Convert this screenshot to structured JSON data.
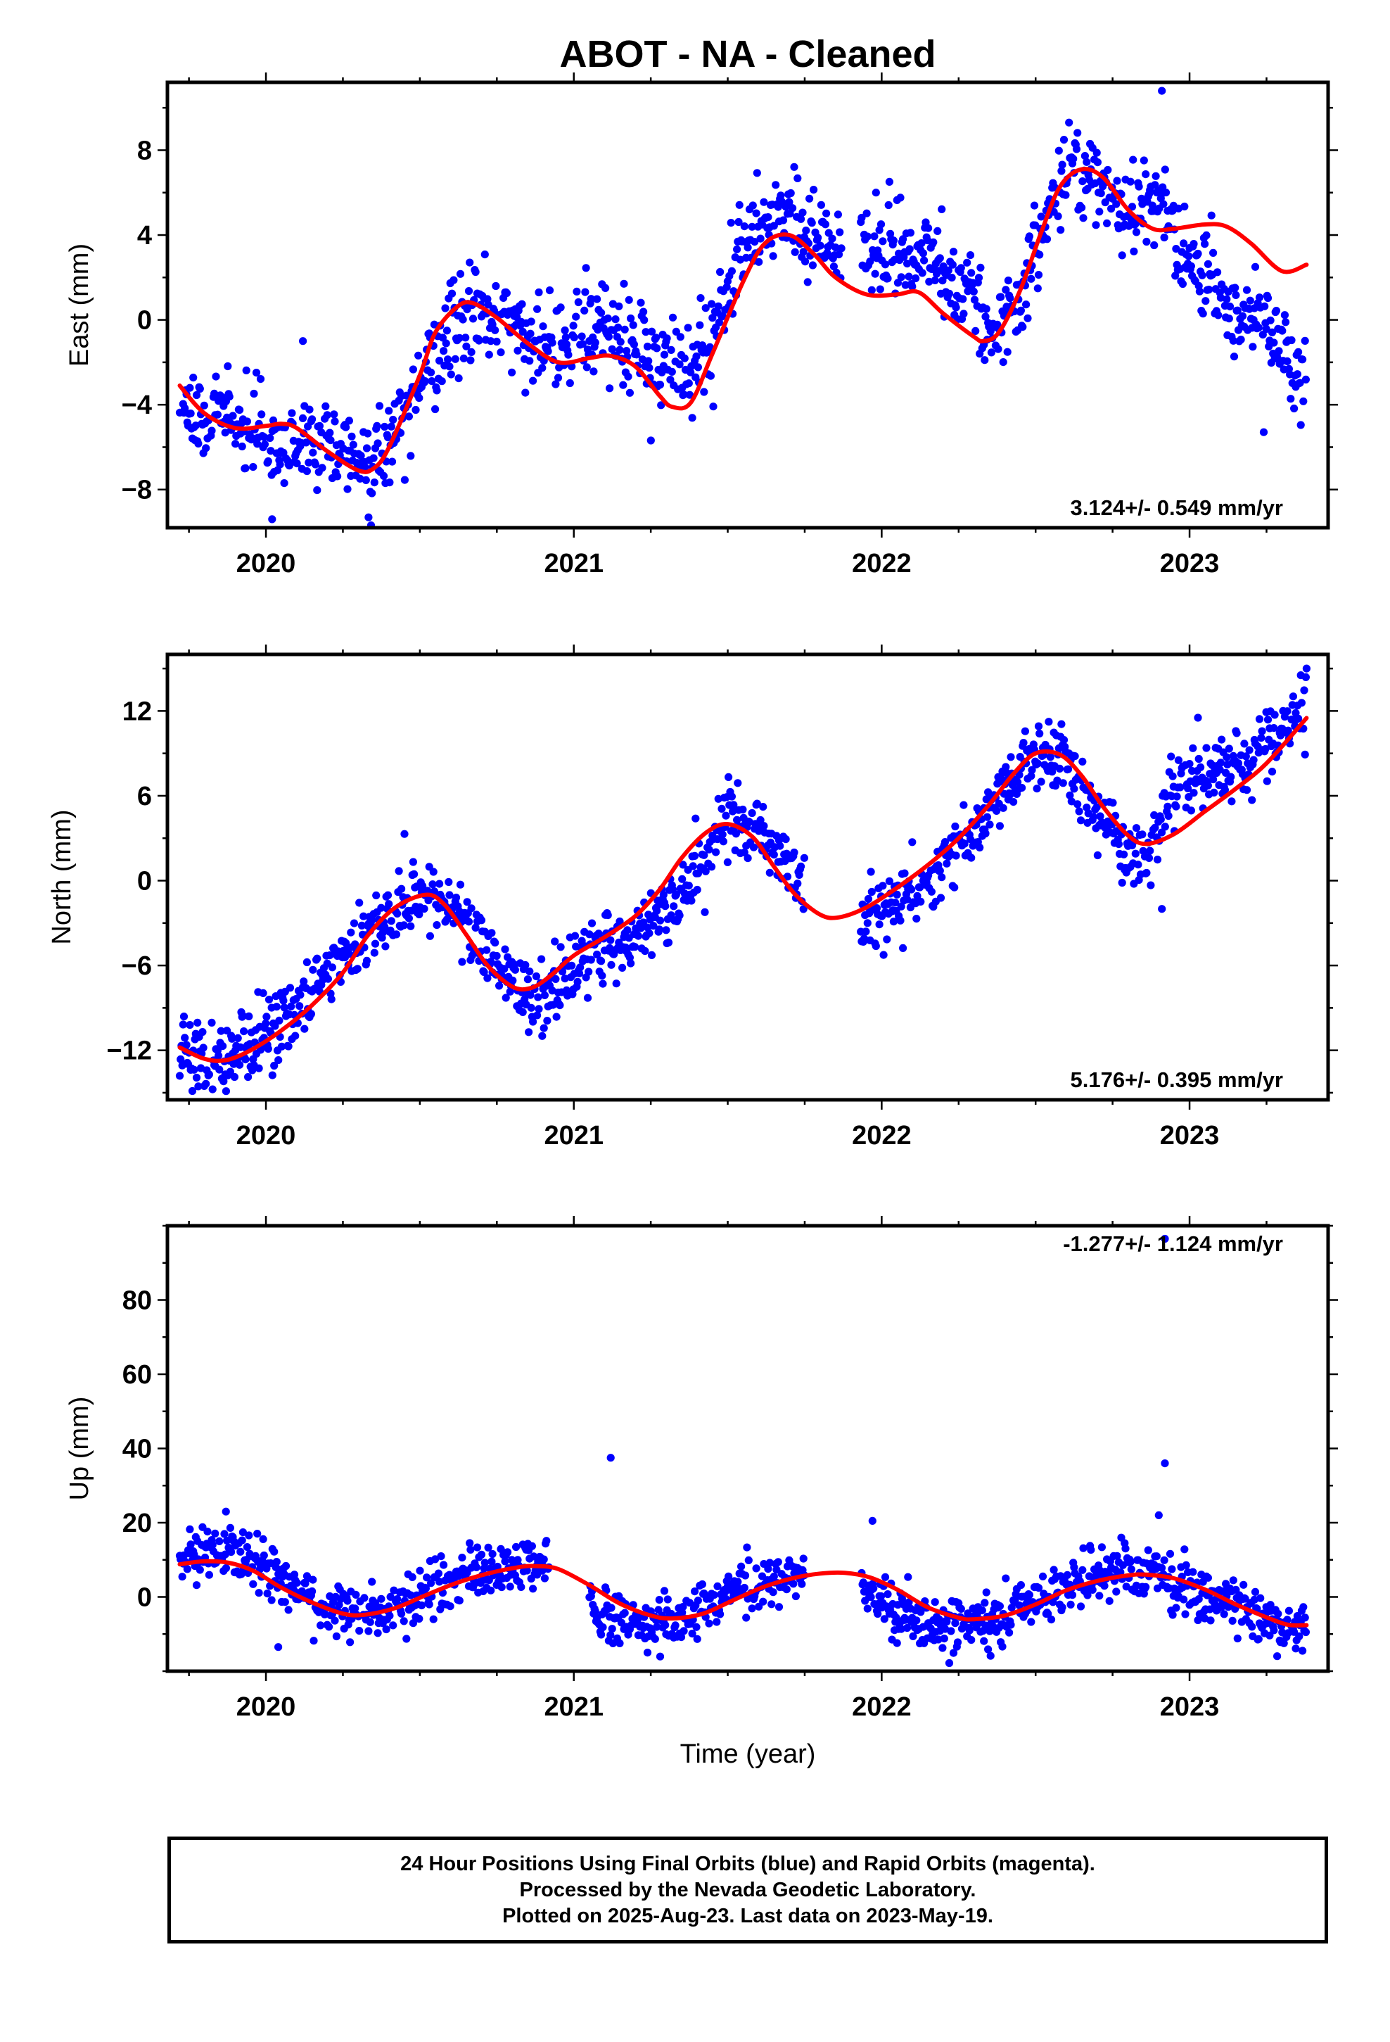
{
  "title": "ABOT  - NA - Cleaned",
  "footer": {
    "lines": [
      "24 Hour Positions Using Final Orbits (blue) and Rapid Orbits (magenta).",
      "Processed by the Nevada Geodetic Laboratory.",
      "Plotted on 2025-Aug-23. Last data on 2023-May-19."
    ]
  },
  "colors": {
    "points": "#0000ff",
    "fit": "#ff0000",
    "axis": "#000000"
  },
  "chart_data": [
    {
      "type": "scatter",
      "ylabel": "East (mm)",
      "xlabel": "",
      "rate_label": "3.124+/- 0.549 mm/yr",
      "xlim": [
        2019.68,
        2023.45
      ],
      "ylim": [
        -9.8,
        11.2
      ],
      "x_ticks": [
        2020,
        2021,
        2022,
        2023
      ],
      "y_ticks": [
        -8,
        -4,
        0,
        4,
        8
      ],
      "y_tick_labels": [
        "−8",
        "−4",
        "0",
        "4",
        "8"
      ],
      "series": [
        {
          "kind": "points",
          "gaps": [
            [
              2021.87,
              2021.93
            ]
          ],
          "outliers": [
            [
              2020.12,
              -1.0
            ],
            [
              2020.02,
              -9.4
            ],
            [
              2022.91,
              10.8
            ]
          ],
          "trend": [
            [
              2019.72,
              -5.0
            ],
            [
              2019.85,
              -4.3
            ],
            [
              2020.0,
              -5.5
            ],
            [
              2020.15,
              -5.8
            ],
            [
              2020.3,
              -6.8
            ],
            [
              2020.42,
              -5.3
            ],
            [
              2020.5,
              -3.0
            ],
            [
              2020.6,
              -0.3
            ],
            [
              2020.7,
              0.3
            ],
            [
              2020.8,
              -0.5
            ],
            [
              2020.9,
              -1.3
            ],
            [
              2021.0,
              -0.8
            ],
            [
              2021.1,
              -0.3
            ],
            [
              2021.2,
              -1.5
            ],
            [
              2021.3,
              -2.5
            ],
            [
              2021.42,
              -1.5
            ],
            [
              2021.5,
              1.5
            ],
            [
              2021.6,
              4.3
            ],
            [
              2021.7,
              5.0
            ],
            [
              2021.76,
              4.2
            ],
            [
              2021.95,
              3.0
            ],
            [
              2022.05,
              3.5
            ],
            [
              2022.15,
              3.3
            ],
            [
              2022.25,
              1.5
            ],
            [
              2022.35,
              -0.3
            ],
            [
              2022.45,
              0.2
            ],
            [
              2022.52,
              4.0
            ],
            [
              2022.6,
              7.3
            ],
            [
              2022.7,
              6.8
            ],
            [
              2022.82,
              5.0
            ],
            [
              2022.92,
              5.5
            ],
            [
              2023.0,
              2.5
            ],
            [
              2023.1,
              1.5
            ],
            [
              2023.2,
              0.0
            ],
            [
              2023.3,
              -1.0
            ],
            [
              2023.38,
              -2.8
            ]
          ],
          "spread": 1.1
        },
        {
          "kind": "fit",
          "x": [
            2019.72,
            2019.8,
            2019.9,
            2020.0,
            2020.05,
            2020.1,
            2020.2,
            2020.3,
            2020.35,
            2020.4,
            2020.5,
            2020.55,
            2020.62,
            2020.67,
            2020.75,
            2020.85,
            2020.95,
            2021.05,
            2021.12,
            2021.2,
            2021.28,
            2021.32,
            2021.38,
            2021.45,
            2021.55,
            2021.62,
            2021.7,
            2021.78,
            2021.85,
            2021.95,
            2022.05,
            2022.12,
            2022.2,
            2022.3,
            2022.33,
            2022.38,
            2022.45,
            2022.52,
            2022.58,
            2022.65,
            2022.72,
            2022.8,
            2022.88,
            2022.95,
            2023.05,
            2023.12,
            2023.2,
            2023.3,
            2023.38
          ],
          "y": [
            -3.1,
            -4.4,
            -5.1,
            -5.0,
            -4.9,
            -5.1,
            -6.2,
            -7.1,
            -7.0,
            -6.0,
            -2.6,
            -0.6,
            0.6,
            0.8,
            0.1,
            -1.1,
            -2.0,
            -1.8,
            -1.7,
            -2.2,
            -3.6,
            -4.1,
            -3.9,
            -1.6,
            1.8,
            3.6,
            4.0,
            3.1,
            2.0,
            1.2,
            1.2,
            1.3,
            0.3,
            -0.8,
            -1.0,
            -0.6,
            1.4,
            4.2,
            6.3,
            7.1,
            6.7,
            5.2,
            4.3,
            4.3,
            4.5,
            4.4,
            3.6,
            2.3,
            2.6
          ]
        }
      ]
    },
    {
      "type": "scatter",
      "ylabel": "North (mm)",
      "xlabel": "",
      "rate_label": "5.176+/- 0.395 mm/yr",
      "xlim": [
        2019.68,
        2023.45
      ],
      "ylim": [
        -15.5,
        16.0
      ],
      "x_ticks": [
        2020,
        2021,
        2022,
        2023
      ],
      "y_ticks": [
        -12,
        -6,
        0,
        6,
        12
      ],
      "y_tick_labels": [
        "−12",
        "−6",
        "0",
        "6",
        "12"
      ],
      "series": [
        {
          "kind": "points",
          "gaps": [
            [
              2021.75,
              2021.93
            ]
          ],
          "outliers": [
            [
              2020.45,
              3.3
            ],
            [
              2022.91,
              -2.0
            ],
            [
              2023.38,
              15.0
            ]
          ],
          "trend": [
            [
              2019.72,
              -12.0
            ],
            [
              2019.85,
              -13.0
            ],
            [
              2020.0,
              -11.0
            ],
            [
              2020.15,
              -8.0
            ],
            [
              2020.3,
              -4.5
            ],
            [
              2020.42,
              -2.0
            ],
            [
              2020.52,
              -0.5
            ],
            [
              2020.6,
              -1.8
            ],
            [
              2020.72,
              -5.0
            ],
            [
              2020.85,
              -8.5
            ],
            [
              2020.95,
              -7.5
            ],
            [
              2021.05,
              -5.0
            ],
            [
              2021.15,
              -4.5
            ],
            [
              2021.3,
              -2.0
            ],
            [
              2021.42,
              1.0
            ],
            [
              2021.5,
              4.5
            ],
            [
              2021.6,
              3.5
            ],
            [
              2021.72,
              0.0
            ],
            [
              2021.93,
              -3.0
            ],
            [
              2022.05,
              -1.5
            ],
            [
              2022.15,
              0.0
            ],
            [
              2022.25,
              2.0
            ],
            [
              2022.35,
              5.0
            ],
            [
              2022.48,
              8.5
            ],
            [
              2022.6,
              8.5
            ],
            [
              2022.72,
              4.0
            ],
            [
              2022.85,
              1.0
            ],
            [
              2022.92,
              5.0
            ],
            [
              2023.0,
              7.0
            ],
            [
              2023.1,
              8.0
            ],
            [
              2023.2,
              8.5
            ],
            [
              2023.3,
              10.5
            ],
            [
              2023.38,
              12.5
            ]
          ],
          "spread": 1.2
        },
        {
          "kind": "fit",
          "x": [
            2019.72,
            2019.8,
            2019.87,
            2019.95,
            2020.05,
            2020.15,
            2020.25,
            2020.33,
            2020.42,
            2020.52,
            2020.58,
            2020.65,
            2020.72,
            2020.8,
            2020.86,
            2020.92,
            2021.0,
            2021.1,
            2021.2,
            2021.28,
            2021.35,
            2021.43,
            2021.5,
            2021.58,
            2021.65,
            2021.72,
            2021.8,
            2021.86,
            2021.95,
            2022.05,
            2022.15,
            2022.25,
            2022.35,
            2022.43,
            2022.5,
            2022.58,
            2022.65,
            2022.72,
            2022.8,
            2022.86,
            2022.95,
            2023.05,
            2023.15,
            2023.25,
            2023.38
          ],
          "y": [
            -11.8,
            -12.6,
            -12.7,
            -12.0,
            -10.6,
            -8.8,
            -6.5,
            -3.9,
            -1.9,
            -1.0,
            -1.7,
            -3.8,
            -6.0,
            -7.5,
            -7.6,
            -6.8,
            -5.3,
            -4.0,
            -2.5,
            -0.6,
            1.6,
            3.4,
            4.0,
            3.1,
            1.0,
            -1.0,
            -2.4,
            -2.6,
            -1.9,
            -0.5,
            1.1,
            3.0,
            5.4,
            7.6,
            9.0,
            8.9,
            7.4,
            5.2,
            3.2,
            2.6,
            3.3,
            4.9,
            6.5,
            8.3,
            11.5
          ]
        }
      ]
    },
    {
      "type": "scatter",
      "ylabel": "Up (mm)",
      "xlabel": "Time (year)",
      "rate_label": "-1.277+/- 1.124 mm/yr",
      "xlim": [
        2019.68,
        2023.45
      ],
      "ylim": [
        -20,
        100
      ],
      "x_ticks": [
        2020,
        2021,
        2022,
        2023
      ],
      "y_ticks": [
        0,
        20,
        40,
        60,
        80
      ],
      "y_tick_labels": [
        "0",
        "20",
        "40",
        "60",
        "80"
      ],
      "series": [
        {
          "kind": "points",
          "gaps": [
            [
              2020.92,
              2021.05
            ],
            [
              2021.75,
              2021.93
            ]
          ],
          "outliers": [
            [
              2021.12,
              37.5
            ],
            [
              2022.92,
              36.0
            ],
            [
              2022.92,
              96.5
            ],
            [
              2020.04,
              -13.5
            ],
            [
              2021.97,
              20.5
            ],
            [
              2022.9,
              22.0
            ],
            [
              2019.87,
              23.0
            ]
          ],
          "trend": [
            [
              2019.72,
              10.0
            ],
            [
              2019.85,
              12.0
            ],
            [
              2020.0,
              8.0
            ],
            [
              2020.12,
              0.0
            ],
            [
              2020.25,
              -5.0
            ],
            [
              2020.4,
              -3.0
            ],
            [
              2020.55,
              3.0
            ],
            [
              2020.7,
              6.0
            ],
            [
              2020.85,
              8.0
            ],
            [
              2020.92,
              7.0
            ],
            [
              2021.05,
              -2.0
            ],
            [
              2021.2,
              -8.0
            ],
            [
              2021.35,
              -7.0
            ],
            [
              2021.5,
              2.0
            ],
            [
              2021.65,
              5.0
            ],
            [
              2021.75,
              5.5
            ],
            [
              2021.93,
              4.0
            ],
            [
              2022.05,
              -5.0
            ],
            [
              2022.2,
              -7.0
            ],
            [
              2022.35,
              -6.0
            ],
            [
              2022.5,
              -1.0
            ],
            [
              2022.65,
              5.0
            ],
            [
              2022.8,
              7.0
            ],
            [
              2022.9,
              6.0
            ],
            [
              2023.0,
              2.0
            ],
            [
              2023.15,
              -3.0
            ],
            [
              2023.3,
              -8.0
            ],
            [
              2023.38,
              -10.0
            ]
          ],
          "spread": 3.6
        },
        {
          "kind": "fit",
          "x": [
            2019.72,
            2019.8,
            2019.88,
            2019.96,
            2020.05,
            2020.15,
            2020.25,
            2020.32,
            2020.42,
            2020.52,
            2020.62,
            2020.72,
            2020.82,
            2020.88,
            2020.95,
            2021.05,
            2021.15,
            2021.25,
            2021.32,
            2021.42,
            2021.52,
            2021.62,
            2021.72,
            2021.8,
            2021.88,
            2021.96,
            2022.05,
            2022.15,
            2022.25,
            2022.3,
            2022.4,
            2022.5,
            2022.6,
            2022.7,
            2022.8,
            2022.86,
            2022.95,
            2023.05,
            2023.15,
            2023.25,
            2023.32,
            2023.38
          ],
          "y": [
            8.8,
            9.6,
            9.2,
            7.0,
            2.5,
            -1.5,
            -4.5,
            -4.8,
            -3.0,
            0.5,
            3.8,
            6.3,
            8.0,
            8.3,
            7.5,
            3.2,
            -1.8,
            -5.0,
            -5.8,
            -4.5,
            -0.8,
            2.8,
            5.2,
            6.3,
            6.5,
            5.3,
            2.0,
            -2.8,
            -5.6,
            -6.0,
            -5.0,
            -2.0,
            1.8,
            4.3,
            5.8,
            6.0,
            5.0,
            2.0,
            -2.0,
            -5.5,
            -7.5,
            -7.6
          ]
        }
      ]
    }
  ]
}
